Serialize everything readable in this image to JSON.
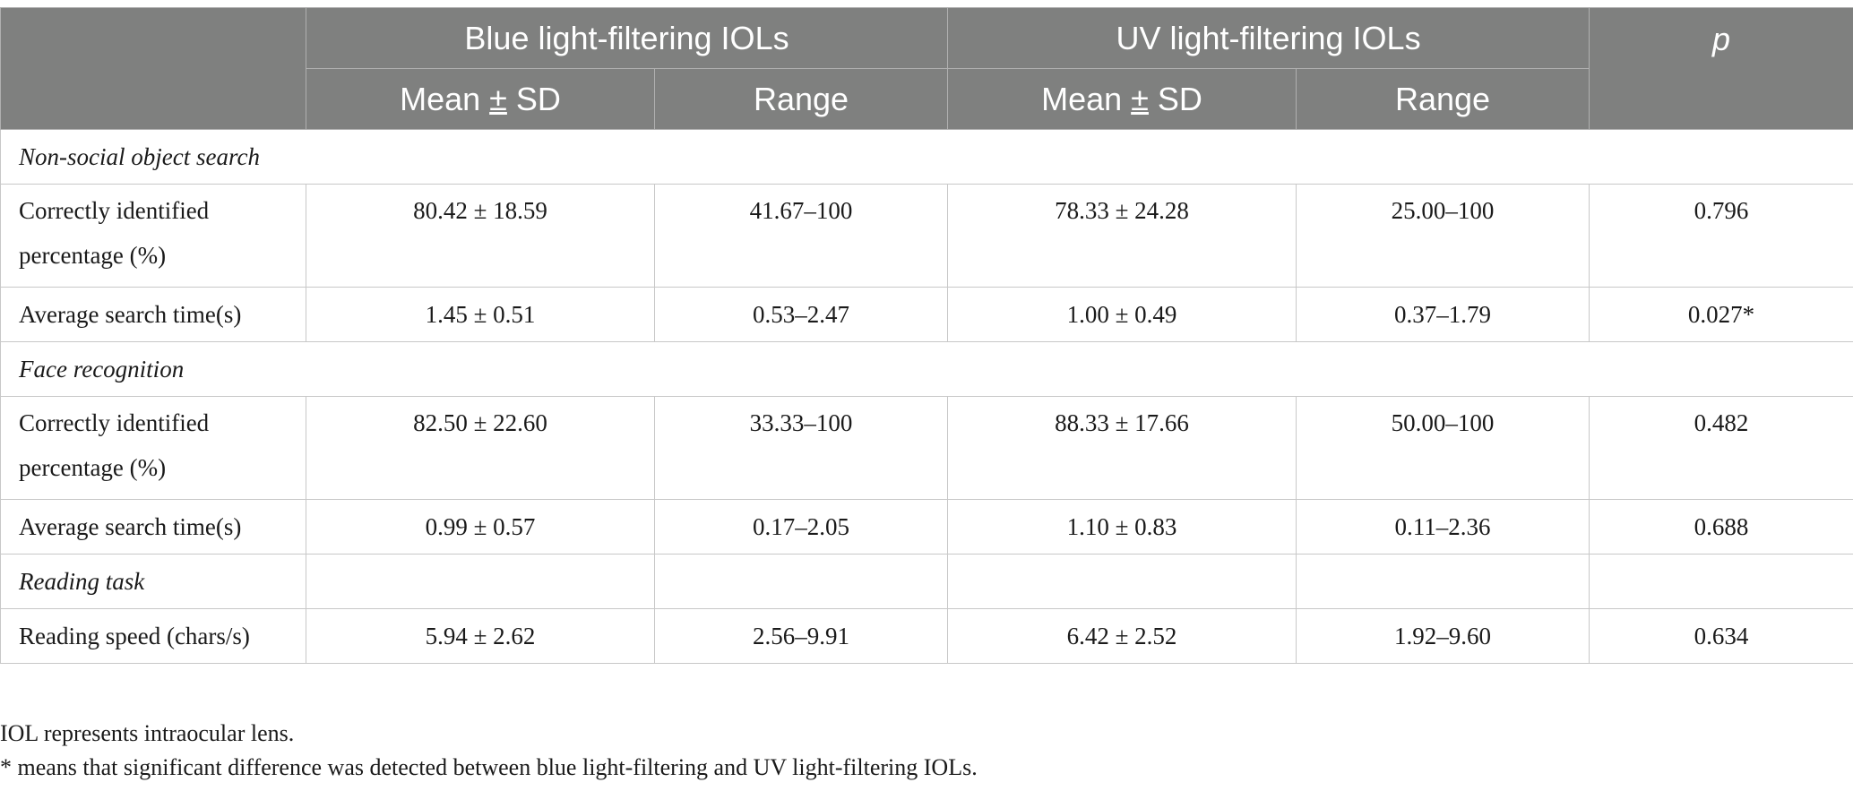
{
  "header": {
    "group_blue": "Blue light-filtering IOLs",
    "group_uv": "UV light-filtering IOLs",
    "p_label": "p",
    "mean_sd_prefix": "Mean ",
    "pm_symbol": "±",
    "mean_sd_suffix": " SD",
    "range_label": "Range"
  },
  "sections": [
    {
      "title": "Non-social object search",
      "rows": [
        {
          "label": "Correctly identified percentage (%)",
          "blue_mean": "80.42 ± 18.59",
          "blue_range": "41.67–100",
          "uv_mean": "78.33 ± 24.28",
          "uv_range": "25.00–100",
          "p": "0.796"
        },
        {
          "label": "Average search time(s)",
          "blue_mean": "1.45 ± 0.51",
          "blue_range": "0.53–2.47",
          "uv_mean": "1.00 ± 0.49",
          "uv_range": "0.37–1.79",
          "p": "0.027*"
        }
      ]
    },
    {
      "title": "Face recognition",
      "rows": [
        {
          "label": "Correctly identified percentage (%)",
          "blue_mean": "82.50 ± 22.60",
          "blue_range": "33.33–100",
          "uv_mean": "88.33 ± 17.66",
          "uv_range": "50.00–100",
          "p": "0.482"
        },
        {
          "label": "Average search time(s)",
          "blue_mean": "0.99 ± 0.57",
          "blue_range": "0.17–2.05",
          "uv_mean": "1.10 ± 0.83",
          "uv_range": "0.11–2.36",
          "p": "0.688"
        }
      ]
    },
    {
      "title": "Reading task",
      "rows": [
        {
          "label": "Reading speed (chars/s)",
          "blue_mean": "5.94 ± 2.62",
          "blue_range": "2.56–9.91",
          "uv_mean": "6.42 ± 2.52",
          "uv_range": "1.92–9.60",
          "p": "0.634"
        }
      ]
    }
  ],
  "footnotes": [
    "IOL represents intraocular lens.",
    "* means that significant difference was detected between blue light-filtering and UV light-filtering IOLs."
  ]
}
